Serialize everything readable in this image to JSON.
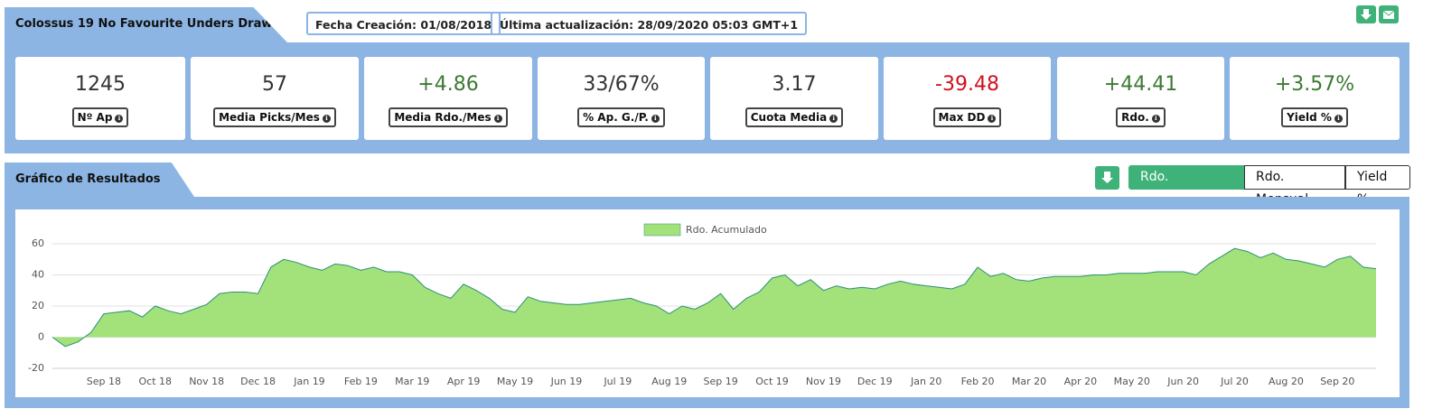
{
  "header": {
    "title": "Colossus 19 No Favourite Unders Draw",
    "created": "Fecha Creación: 01/08/2018",
    "updated": "Última actualización: 28/09/2020 05:03 GMT+1"
  },
  "stats": [
    {
      "value": "1245",
      "label": "Nº Ap",
      "color": "#333333"
    },
    {
      "value": "57",
      "label": "Media Picks/Mes",
      "color": "#333333"
    },
    {
      "value": "+4.86",
      "label": "Media Rdo./Mes",
      "color": "#3c7a32"
    },
    {
      "value": "33/67%",
      "label": "% Ap. G./P.",
      "color": "#333333"
    },
    {
      "value": "3.17",
      "label": "Cuota Media",
      "color": "#333333"
    },
    {
      "value": "-39.48",
      "label": "Max DD",
      "color": "#d0101e"
    },
    {
      "value": "+44.41",
      "label": "Rdo.",
      "color": "#3c7a32"
    },
    {
      "value": "+3.57%",
      "label": "Yield %",
      "color": "#3c7a32"
    }
  ],
  "section": {
    "title": "Gráfico de Resultados",
    "tabs": [
      "Rdo. Acumulado",
      "Rdo. Mensual",
      "Yield %"
    ],
    "active": 0
  },
  "chart_data": {
    "type": "area",
    "categories": [
      null,
      null,
      null,
      null,
      "Sep 18",
      null,
      null,
      null,
      "Oct 18",
      null,
      null,
      null,
      "Nov 18",
      null,
      null,
      null,
      "Dec 18",
      null,
      null,
      null,
      "Jan 19",
      null,
      null,
      null,
      "Feb 19",
      null,
      null,
      null,
      "Mar 19",
      null,
      null,
      null,
      "Apr 19",
      null,
      null,
      null,
      "May 19",
      null,
      null,
      null,
      "Jun 19",
      null,
      null,
      null,
      "Jul 19",
      null,
      null,
      null,
      "Aug 19",
      null,
      null,
      null,
      "Sep 19",
      null,
      null,
      null,
      "Oct 19",
      null,
      null,
      null,
      "Nov 19",
      null,
      null,
      null,
      "Dec 19",
      null,
      null,
      null,
      "Jan 20",
      null,
      null,
      null,
      "Feb 20",
      null,
      null,
      null,
      "Mar 20",
      null,
      null,
      null,
      "Apr 20",
      null,
      null,
      null,
      "May 20",
      null,
      null,
      null,
      "Jun 20",
      null,
      null,
      null,
      "Jul 20",
      null,
      null,
      null,
      "Aug 20",
      null,
      null,
      null,
      "Sep 20",
      null,
      null,
      null
    ],
    "series": [
      {
        "name": "Rdo. Acumulado",
        "color": "#a3e27a",
        "line_color": "#2a8f7a",
        "values": [
          0,
          -6,
          -3,
          3,
          15,
          16,
          17,
          13,
          20,
          17,
          15,
          18,
          21,
          28,
          29,
          29,
          28,
          45,
          50,
          48,
          45,
          43,
          47,
          46,
          43,
          45,
          42,
          42,
          40,
          32,
          28,
          25,
          34,
          30,
          25,
          18,
          16,
          26,
          23,
          22,
          21,
          21,
          22,
          23,
          24,
          25,
          22,
          20,
          15,
          20,
          18,
          22,
          28,
          18,
          25,
          29,
          38,
          40,
          33,
          37,
          30,
          33,
          31,
          32,
          31,
          34,
          36,
          34,
          33,
          32,
          31,
          34,
          45,
          39,
          41,
          37,
          36,
          38,
          39,
          39,
          39,
          40,
          40,
          41,
          41,
          41,
          42,
          42,
          42,
          40,
          47,
          52,
          57,
          55,
          51,
          54,
          50,
          49,
          47,
          45,
          50,
          52,
          45,
          44
        ]
      }
    ],
    "ylim": [
      -20,
      60
    ],
    "yticks": [
      -20,
      0,
      20,
      40,
      60
    ],
    "grid": true,
    "legend": "top"
  }
}
